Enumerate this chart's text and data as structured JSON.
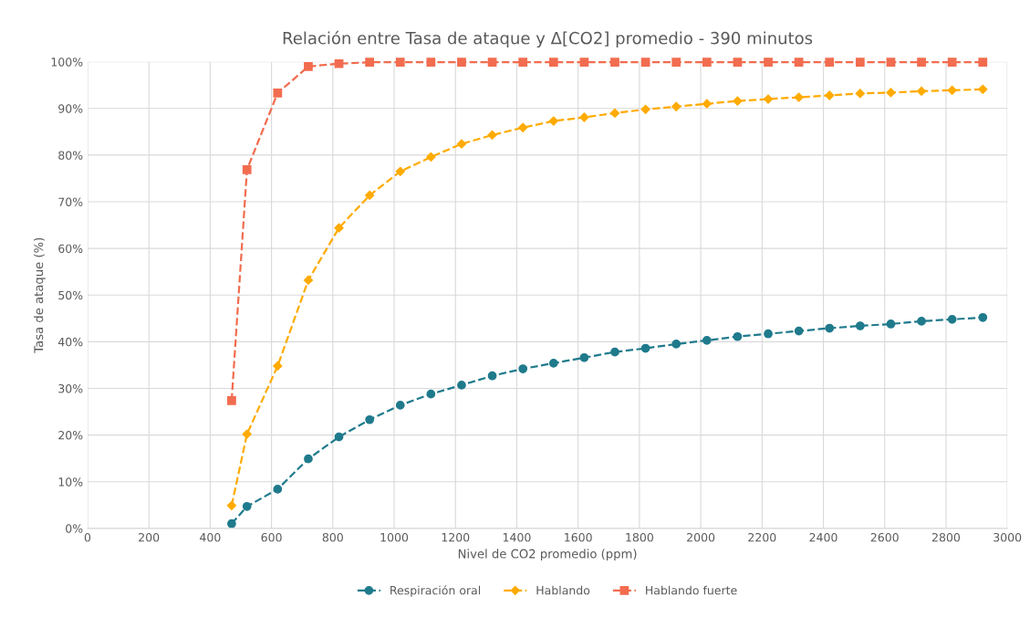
{
  "chart_data": {
    "type": "line",
    "title": "Relación entre Tasa de ataque y Δ[CO2] promedio - 390 minutos",
    "xlabel": "Nivel de CO2 promedio (ppm)",
    "ylabel": "Tasa de ataque (%)",
    "x": [
      470,
      520,
      620,
      720,
      820,
      920,
      1020,
      1120,
      1220,
      1320,
      1420,
      1520,
      1620,
      1720,
      1820,
      1920,
      2020,
      2120,
      2220,
      2320,
      2420,
      2520,
      2620,
      2720,
      2820,
      2920
    ],
    "series": [
      {
        "name": "Respiración oral",
        "color": "#1f7a8c",
        "marker": "circle",
        "values": [
          1.0,
          4.7,
          8.4,
          14.9,
          19.6,
          23.3,
          26.4,
          28.8,
          30.7,
          32.7,
          34.2,
          35.4,
          36.6,
          37.8,
          38.6,
          39.5,
          40.3,
          41.1,
          41.7,
          42.3,
          42.9,
          43.4,
          43.8,
          44.4,
          44.8,
          45.2
        ]
      },
      {
        "name": "Hablando",
        "color": "#ffab00",
        "marker": "diamond",
        "values": [
          4.9,
          20.2,
          34.8,
          53.2,
          64.4,
          71.4,
          76.5,
          79.6,
          82.4,
          84.3,
          85.9,
          87.3,
          88.1,
          89.0,
          89.8,
          90.4,
          91.0,
          91.6,
          92.0,
          92.4,
          92.8,
          93.2,
          93.4,
          93.7,
          93.9,
          94.1
        ]
      },
      {
        "name": "Hablando fuerte",
        "color": "#f26c4f",
        "marker": "square",
        "values": [
          27.4,
          76.9,
          93.3,
          99.0,
          99.6,
          99.9,
          99.9,
          99.9,
          99.9,
          99.9,
          99.9,
          99.9,
          99.9,
          99.9,
          99.9,
          99.9,
          99.9,
          99.9,
          99.9,
          99.9,
          99.9,
          99.9,
          99.9,
          99.9,
          99.9,
          99.9
        ]
      }
    ],
    "xlim": [
      0,
      3000
    ],
    "xticks": [
      0,
      200,
      400,
      600,
      800,
      1000,
      1200,
      1400,
      1600,
      1800,
      2000,
      2200,
      2400,
      2600,
      2800,
      3000
    ],
    "ylim": [
      0,
      100
    ],
    "yticks": [
      {
        "value": 0,
        "label": "0%"
      },
      {
        "value": 10,
        "label": "10%"
      },
      {
        "value": 20,
        "label": "20%"
      },
      {
        "value": 30,
        "label": "30%"
      },
      {
        "value": 40,
        "label": "40%"
      },
      {
        "value": 50,
        "label": "50%"
      },
      {
        "value": 60,
        "label": "60%"
      },
      {
        "value": 70,
        "label": "70%"
      },
      {
        "value": 80,
        "label": "80%"
      },
      {
        "value": 90,
        "label": "90%"
      },
      {
        "value": 100,
        "label": "100%"
      }
    ],
    "grid": true,
    "legend": "bottom",
    "line_style": "dashed"
  }
}
